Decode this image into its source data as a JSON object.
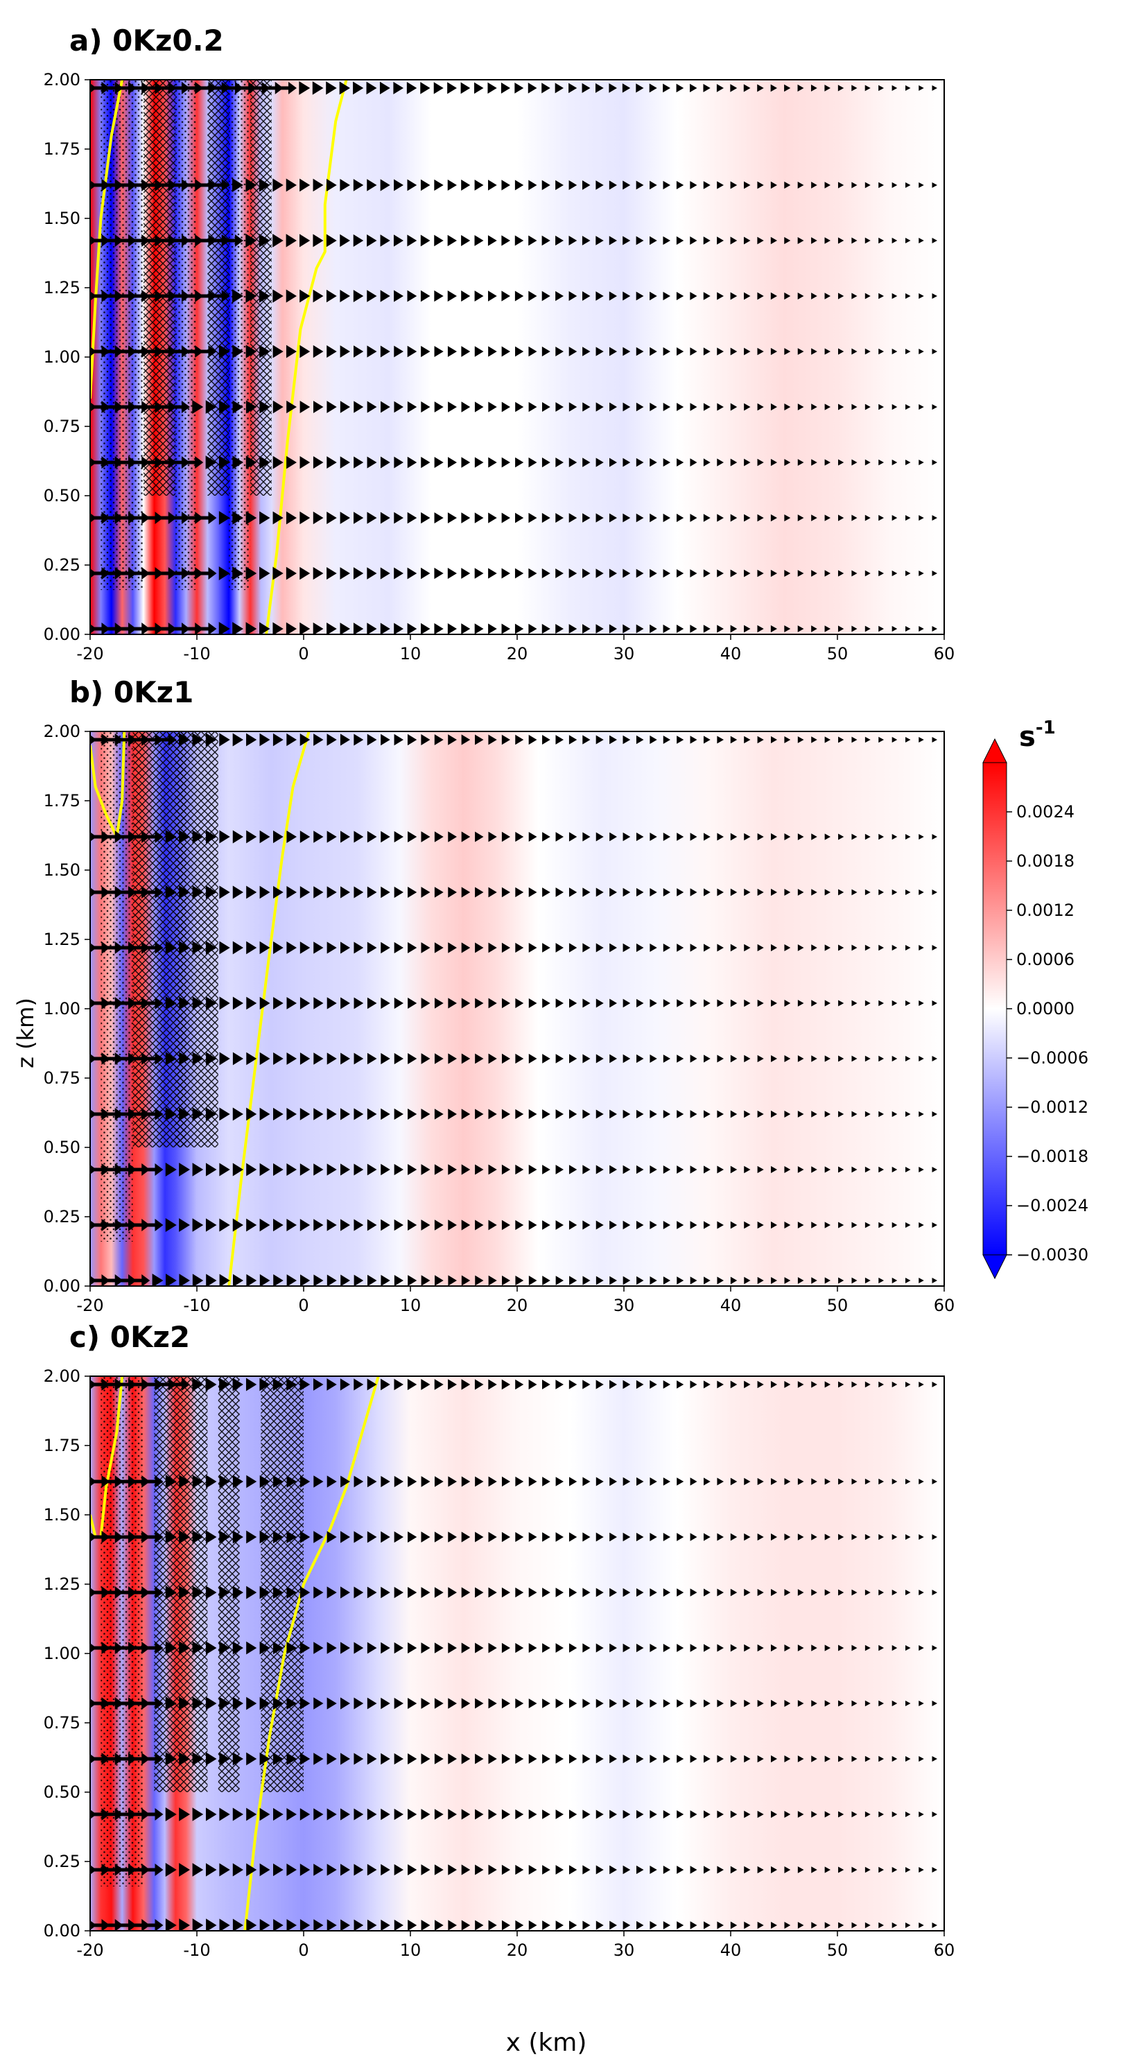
{
  "chart_data": {
    "type": "heatmap",
    "figure": {
      "ylabel": "z (km)",
      "xlabel": "x (km)",
      "colorbar": {
        "unit_base": "s",
        "unit_exp": "-1",
        "range": [
          -0.003,
          0.003
        ],
        "extend": "both",
        "colormap": [
          "#0000ff",
          "#ffffff",
          "#ff0000"
        ],
        "ticks": [
          0.0024,
          0.0018,
          0.0012,
          0.0006,
          0.0,
          -0.0006,
          -0.0012,
          -0.0018,
          -0.0024,
          -0.003
        ],
        "tick_labels": [
          "0.0024",
          "0.0018",
          "0.0012",
          "0.0006",
          "0.0000",
          "−0.0006",
          "−0.0012",
          "−0.0018",
          "−0.0024",
          "−0.0030"
        ]
      },
      "contour_color": "#ffff00",
      "vector_color": "#000000"
    },
    "panels": [
      {
        "id": "a",
        "title": "a) 0Kz0.2",
        "xlim": [
          -20,
          60
        ],
        "ylim": [
          0,
          2
        ],
        "xticks": [
          -20,
          -10,
          0,
          10,
          20,
          30,
          40,
          50,
          60
        ],
        "xtick_labels": [
          "-20",
          "-10",
          "0",
          "10",
          "20",
          "30",
          "40",
          "50",
          "60"
        ],
        "yticks": [
          0,
          0.25,
          0.5,
          0.75,
          1,
          1.25,
          1.5,
          1.75,
          2
        ],
        "ytick_labels": [
          "0.00",
          "0.25",
          "0.50",
          "0.75",
          "1.00",
          "1.25",
          "1.50",
          "1.75",
          "2.00"
        ],
        "field_profile": [
          {
            "x": -20,
            "v": 0.003
          },
          {
            "x": -19,
            "v": -0.0015
          },
          {
            "x": -18,
            "v": -0.003
          },
          {
            "x": -17,
            "v": 0.0018
          },
          {
            "x": -16,
            "v": -0.002
          },
          {
            "x": -15,
            "v": 0.0
          },
          {
            "x": -14,
            "v": 0.003
          },
          {
            "x": -13,
            "v": 0.002
          },
          {
            "x": -12,
            "v": -0.0025
          },
          {
            "x": -11,
            "v": -0.001
          },
          {
            "x": -10,
            "v": 0.0024
          },
          {
            "x": -9,
            "v": -0.0008
          },
          {
            "x": -8,
            "v": -0.0018
          },
          {
            "x": -7,
            "v": -0.003
          },
          {
            "x": -6,
            "v": -0.0006
          },
          {
            "x": -5,
            "v": 0.0024
          },
          {
            "x": -4,
            "v": -0.0008
          },
          {
            "x": -3,
            "v": -0.0004
          },
          {
            "x": -2,
            "v": 0.0008
          },
          {
            "x": 0,
            "v": 0.0003
          },
          {
            "x": 3,
            "v": -0.0002
          },
          {
            "x": 8,
            "v": -0.0003
          },
          {
            "x": 12,
            "v": 0.0
          },
          {
            "x": 20,
            "v": 0.0
          },
          {
            "x": 25,
            "v": -0.0002
          },
          {
            "x": 30,
            "v": -0.0003
          },
          {
            "x": 35,
            "v": 0.0
          },
          {
            "x": 40,
            "v": 0.0002
          },
          {
            "x": 45,
            "v": 0.0004
          },
          {
            "x": 50,
            "v": 0.0003
          },
          {
            "x": 55,
            "v": 0.0001
          },
          {
            "x": 60,
            "v": 0.0
          }
        ],
        "yellow_contour": [
          [
            -3.5,
            0.0
          ],
          [
            -2.5,
            0.3
          ],
          [
            -1.5,
            0.7
          ],
          [
            -0.3,
            1.1
          ],
          [
            1.2,
            1.32
          ],
          [
            2.0,
            1.38
          ],
          [
            2.0,
            1.55
          ],
          [
            3.0,
            1.85
          ],
          [
            4.0,
            2.0
          ]
        ],
        "yellow_contour_2": [
          [
            -20.0,
            0.85
          ],
          [
            -19.5,
            1.2
          ],
          [
            -19.0,
            1.5
          ],
          [
            -18.0,
            1.8
          ],
          [
            -17.0,
            2.0
          ]
        ],
        "stipple_regions": [
          [
            -19,
            -15
          ],
          [
            -12,
            -10
          ],
          [
            -7,
            -5
          ]
        ],
        "hatch_regions": [
          [
            -15,
            -12
          ],
          [
            -9,
            -7
          ],
          [
            -5,
            -3
          ]
        ],
        "vector_rows": [
          0.02,
          0.22,
          0.42,
          0.62,
          0.82,
          1.02,
          1.22,
          1.42,
          1.62,
          1.97
        ],
        "vectors_east_of": [
          -7,
          -7,
          -8,
          -9,
          -10,
          -8,
          -6,
          -5,
          -6,
          0
        ]
      },
      {
        "id": "b",
        "title": "b) 0Kz1",
        "xlim": [
          -20,
          60
        ],
        "ylim": [
          0,
          2
        ],
        "xticks": [
          -20,
          -10,
          0,
          10,
          20,
          30,
          40,
          50,
          60
        ],
        "xtick_labels": [
          "-20",
          "-10",
          "0",
          "10",
          "20",
          "30",
          "40",
          "50",
          "60"
        ],
        "yticks": [
          0,
          0.25,
          0.5,
          0.75,
          1,
          1.25,
          1.5,
          1.75,
          2
        ],
        "ytick_labels": [
          "0.00",
          "0.25",
          "0.50",
          "0.75",
          "1.00",
          "1.25",
          "1.50",
          "1.75",
          "2.00"
        ],
        "field_profile": [
          {
            "x": -20,
            "v": -0.0012
          },
          {
            "x": -19,
            "v": 0.0016
          },
          {
            "x": -18,
            "v": 0.0008
          },
          {
            "x": -17,
            "v": -0.0018
          },
          {
            "x": -16,
            "v": 0.0024
          },
          {
            "x": -15,
            "v": 0.002
          },
          {
            "x": -14,
            "v": -0.0012
          },
          {
            "x": -13,
            "v": -0.0024
          },
          {
            "x": -12,
            "v": -0.002
          },
          {
            "x": -10,
            "v": -0.0008
          },
          {
            "x": -7,
            "v": -0.0004
          },
          {
            "x": -3,
            "v": -0.0006
          },
          {
            "x": 0,
            "v": -0.0005
          },
          {
            "x": 5,
            "v": -0.0004
          },
          {
            "x": 9,
            "v": -0.0001
          },
          {
            "x": 12,
            "v": 0.0004
          },
          {
            "x": 15,
            "v": 0.0006
          },
          {
            "x": 18,
            "v": 0.0004
          },
          {
            "x": 22,
            "v": 0.0
          },
          {
            "x": 28,
            "v": -0.0002
          },
          {
            "x": 33,
            "v": -0.0001
          },
          {
            "x": 38,
            "v": 0.0001
          },
          {
            "x": 44,
            "v": 0.0003
          },
          {
            "x": 50,
            "v": 0.0002
          },
          {
            "x": 56,
            "v": 0.0001
          },
          {
            "x": 60,
            "v": 0.0
          }
        ],
        "yellow_contour": [
          [
            -7.0,
            0.0
          ],
          [
            -5.8,
            0.4
          ],
          [
            -4.5,
            0.8
          ],
          [
            -3.2,
            1.2
          ],
          [
            -2.0,
            1.55
          ],
          [
            -1.0,
            1.8
          ],
          [
            0.5,
            2.0
          ]
        ],
        "yellow_contour_2": [
          [
            -20.0,
            1.95
          ],
          [
            -19.5,
            1.8
          ],
          [
            -18.5,
            1.7
          ],
          [
            -17.5,
            1.62
          ],
          [
            -17.0,
            1.75
          ],
          [
            -16.8,
            2.0
          ]
        ],
        "stipple_regions": [
          [
            -19,
            -16
          ]
        ],
        "hatch_regions": [
          [
            -16,
            -11
          ],
          [
            -12,
            -8
          ]
        ],
        "vector_rows": [
          0.02,
          0.22,
          0.42,
          0.62,
          0.82,
          1.02,
          1.22,
          1.42,
          1.62,
          1.97
        ],
        "vectors_east_of": [
          -14,
          -12,
          -12,
          -12,
          -13,
          -13,
          -12,
          -12,
          -12,
          -11
        ]
      },
      {
        "id": "c",
        "title": "c) 0Kz2",
        "xlim": [
          -20,
          60
        ],
        "ylim": [
          0,
          2
        ],
        "xticks": [
          -20,
          -10,
          0,
          10,
          20,
          30,
          40,
          50,
          60
        ],
        "xtick_labels": [
          "-20",
          "-10",
          "0",
          "10",
          "20",
          "30",
          "40",
          "50",
          "60"
        ],
        "yticks": [
          0,
          0.25,
          0.5,
          0.75,
          1,
          1.25,
          1.5,
          1.75,
          2
        ],
        "ytick_labels": [
          "0.00",
          "0.25",
          "0.50",
          "0.75",
          "1.00",
          "1.25",
          "1.50",
          "1.75",
          "2.00"
        ],
        "field_profile": [
          {
            "x": -20,
            "v": -0.001
          },
          {
            "x": -19,
            "v": 0.0024
          },
          {
            "x": -18,
            "v": 0.0028
          },
          {
            "x": -17,
            "v": -0.001
          },
          {
            "x": -16,
            "v": 0.0028
          },
          {
            "x": -15,
            "v": 0.0018
          },
          {
            "x": -14,
            "v": -0.0018
          },
          {
            "x": -13,
            "v": -0.0008
          },
          {
            "x": -12,
            "v": 0.0024
          },
          {
            "x": -11,
            "v": 0.0018
          },
          {
            "x": -10,
            "v": -0.0006
          },
          {
            "x": -7,
            "v": -0.0008
          },
          {
            "x": -3,
            "v": -0.001
          },
          {
            "x": 0,
            "v": -0.0012
          },
          {
            "x": 3,
            "v": -0.001
          },
          {
            "x": 7,
            "v": -0.0004
          },
          {
            "x": 10,
            "v": 0.0001
          },
          {
            "x": 15,
            "v": 0.0003
          },
          {
            "x": 20,
            "v": 0.0001
          },
          {
            "x": 25,
            "v": 0.0
          },
          {
            "x": 30,
            "v": -0.0002
          },
          {
            "x": 35,
            "v": 0.0
          },
          {
            "x": 40,
            "v": 0.0002
          },
          {
            "x": 45,
            "v": 0.0003
          },
          {
            "x": 50,
            "v": 0.0003
          },
          {
            "x": 55,
            "v": 0.0002
          },
          {
            "x": 60,
            "v": 0.0
          }
        ],
        "yellow_contour": [
          [
            -5.5,
            0.0
          ],
          [
            -4.5,
            0.35
          ],
          [
            -3.2,
            0.7
          ],
          [
            -1.8,
            1.0
          ],
          [
            0.0,
            1.25
          ],
          [
            2.5,
            1.45
          ],
          [
            4.0,
            1.6
          ],
          [
            5.5,
            1.8
          ],
          [
            7.0,
            2.0
          ]
        ],
        "yellow_contour_2": [
          [
            -20.0,
            1.5
          ],
          [
            -19.5,
            1.42
          ],
          [
            -19.0,
            1.42
          ],
          [
            -18.5,
            1.6
          ],
          [
            -17.5,
            1.8
          ],
          [
            -17.0,
            2.0
          ]
        ],
        "stipple_regions": [
          [
            -19,
            -15
          ]
        ],
        "hatch_regions": [
          [
            -14,
            -12
          ],
          [
            -12,
            -9
          ],
          [
            -8,
            -6
          ],
          [
            -4,
            0
          ]
        ],
        "vector_rows": [
          0.02,
          0.22,
          0.42,
          0.62,
          0.82,
          1.02,
          1.22,
          1.42,
          1.62,
          1.97
        ],
        "vectors_east_of": [
          -13,
          -12,
          -12,
          -12,
          -12,
          -12,
          -12,
          -12,
          -13,
          -10
        ]
      }
    ]
  }
}
